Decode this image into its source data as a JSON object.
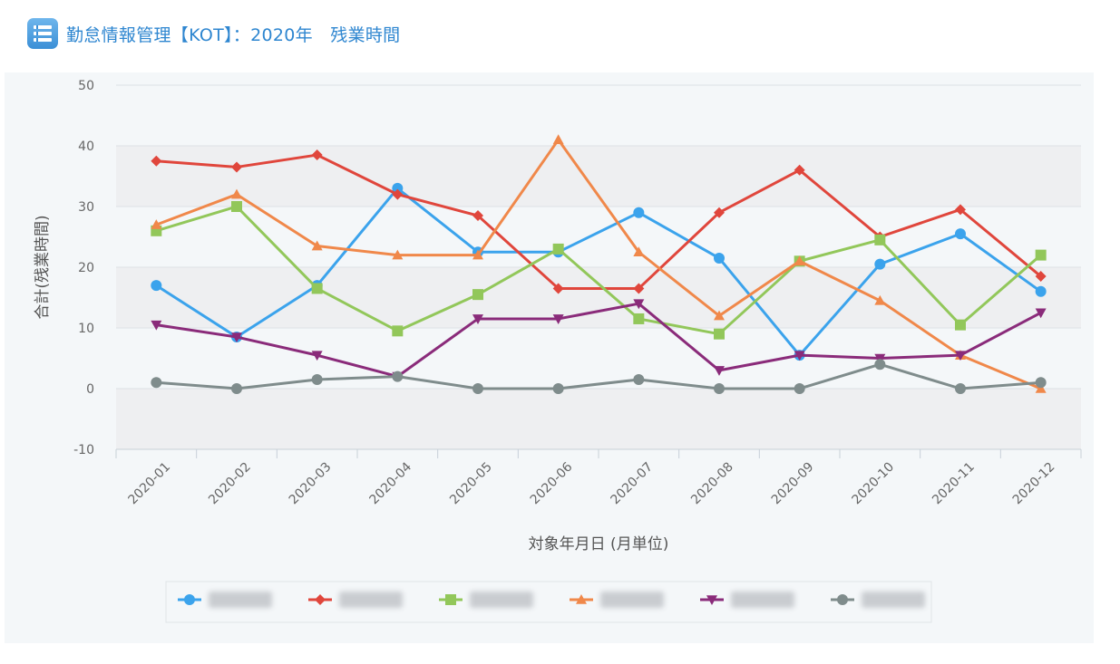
{
  "header": {
    "icon": "list-icon",
    "title": "勤怠情報管理【KOT】：2020年　残業時間"
  },
  "chart_data": {
    "type": "line",
    "title": "",
    "xlabel": "対象年月日 (月単位)",
    "ylabel": "合計(残業時間)",
    "ylim": [
      -10,
      50
    ],
    "yticks": [
      "50",
      "40",
      "30",
      "20",
      "10",
      "0",
      "-10"
    ],
    "categories": [
      "2020-01",
      "2020-02",
      "2020-03",
      "2020-04",
      "2020-05",
      "2020-06",
      "2020-07",
      "2020-08",
      "2020-09",
      "2020-10",
      "2020-11",
      "2020-12"
    ],
    "grid": true,
    "legend": "bottom",
    "series": [
      {
        "color": "#3ba3ec",
        "marker": "circle",
        "values": [
          17,
          8.5,
          17,
          33,
          22.5,
          22.5,
          29,
          21.5,
          5.5,
          20.5,
          25.5,
          16
        ]
      },
      {
        "color": "#e0463c",
        "marker": "diamond",
        "values": [
          37.5,
          36.5,
          38.5,
          32,
          28.5,
          16.5,
          16.5,
          29,
          36,
          25,
          29.5,
          18.5
        ]
      },
      {
        "color": "#92c75a",
        "marker": "square",
        "values": [
          26,
          30,
          16.5,
          9.5,
          15.5,
          23,
          11.5,
          9,
          21,
          24.5,
          10.5,
          22
        ]
      },
      {
        "color": "#f0884a",
        "marker": "triangle",
        "values": [
          27,
          32,
          23.5,
          22,
          22,
          41,
          22.5,
          12,
          21,
          14.5,
          5.5,
          0
        ]
      },
      {
        "color": "#8a2b7a",
        "marker": "triangle-down",
        "values": [
          10.5,
          8.5,
          5.5,
          2,
          11.5,
          11.5,
          14,
          3,
          5.5,
          5,
          5.5,
          12.5
        ]
      },
      {
        "color": "#7f8c8c",
        "marker": "circle",
        "values": [
          1,
          0,
          1.5,
          2,
          0,
          0,
          1.5,
          0,
          0,
          4,
          0,
          1
        ]
      }
    ]
  }
}
